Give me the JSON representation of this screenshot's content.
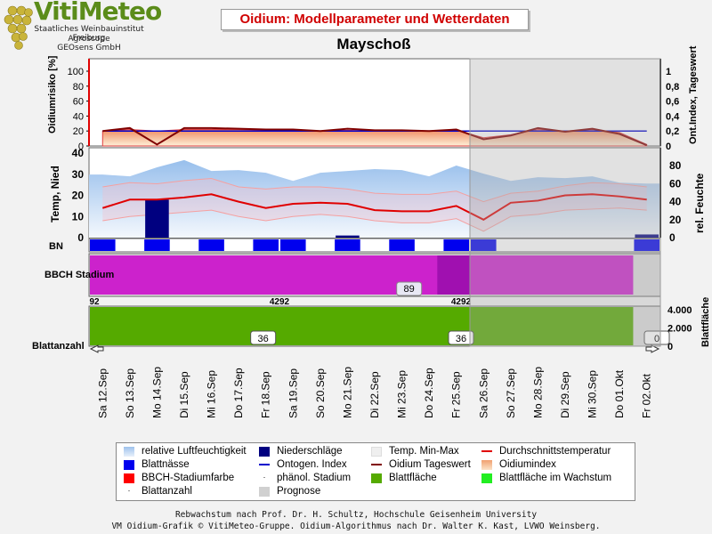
{
  "logo": {
    "name": "VitiMeteo",
    "lines": [
      "Staatliches Weinbauinstitut Freiburg",
      "Agroscope",
      "GEOsens GmbH"
    ]
  },
  "header": {
    "title": "Oidium: Modellparameter und Wetterdaten"
  },
  "station": "Mayschoß",
  "footer": {
    "line1": "Rebwachstum nach Prof. Dr. H. Schultz, Hochschule Geisenheim University",
    "line2": "VM Oidium-Grafik © VitiMeteo-Gruppe. Oidium-Algorithmus nach Dr. Walter K. Kast, LVWO Weinsberg."
  },
  "colors": {
    "forecast": "#c8c8c8",
    "temp_avg": "#e00000",
    "temp_minmax": "#f5a0a0",
    "humidity": "#a8c8ee",
    "rain": "#000080",
    "leaf_wet": "#0000ee",
    "ontogen": "#0000cc",
    "oidium_day": "#800000",
    "bbch": "#cc22cc",
    "leaf_area": "#55aa00",
    "leaf_area_growing": "#22ee22"
  },
  "chart_data": {
    "type": "line",
    "dates": [
      "Sa 12.Sep",
      "So 13.Sep",
      "Mo 14.Sep",
      "Di 15.Sep",
      "Mi 16.Sep",
      "Do 17.Sep",
      "Fr 18.Sep",
      "Sa 19.Sep",
      "So 20.Sep",
      "Mo 21.Sep",
      "Di 22.Sep",
      "Mi 23.Sep",
      "Do 24.Sep",
      "Fr 25.Sep",
      "Sa 26.Sep",
      "So 27.Sep",
      "Mo 28.Sep",
      "Di 29.Sep",
      "Mi 30.Sep",
      "Do 01.Okt",
      "Fr 02.Okt"
    ],
    "forecast_from": "Sa 26.Sep",
    "panel_oidium": {
      "ylabel_left": "Oidiumrisiko [%]",
      "ylabel_right": "Ont.Index, Tageswert",
      "left_ticks": [
        "0",
        "20",
        "40",
        "60",
        "80",
        "100"
      ],
      "right_ticks": [
        "0",
        "0,2",
        "0,4",
        "0,6",
        "0,8",
        "1"
      ],
      "oidium_index": [
        20,
        22,
        20,
        22,
        22,
        22,
        21,
        21,
        20,
        21,
        20,
        20,
        20,
        21,
        11,
        15,
        22,
        20,
        22,
        18,
        2
      ],
      "oidium_day": [
        20,
        24,
        2,
        24,
        24,
        23,
        22,
        22,
        20,
        23,
        21,
        21,
        20,
        22,
        9,
        14,
        24,
        19,
        23,
        16,
        1
      ],
      "ontogen_index": [
        20,
        20,
        20,
        20,
        20,
        20,
        20,
        20,
        20,
        20,
        20,
        20,
        20,
        20,
        20,
        20,
        20,
        20,
        20,
        20,
        20
      ]
    },
    "panel_weather": {
      "ylabel_left": "Temp, Nied",
      "ylabel_right": "rel. Feuchte",
      "left_ticks": [
        "0",
        "10",
        "20",
        "30",
        "40"
      ],
      "right_ticks": [
        "0",
        "20",
        "40",
        "60",
        "80"
      ],
      "humidity": [
        70,
        68,
        78,
        86,
        74,
        75,
        72,
        63,
        72,
        74,
        76,
        75,
        68,
        80,
        71,
        63,
        67,
        66,
        68,
        61,
        60
      ],
      "temp_avg": [
        14,
        18,
        18,
        19,
        20.5,
        17,
        14,
        16,
        16.5,
        16,
        13,
        12.5,
        12.5,
        15,
        8.5,
        16.5,
        17.5,
        20,
        20.5,
        19.5,
        18
      ],
      "temp_max": [
        24,
        26,
        25.5,
        27,
        28,
        24,
        23,
        24,
        24,
        23,
        21,
        20.5,
        20.5,
        22,
        17,
        21,
        22,
        24.5,
        26,
        25.5,
        24
      ],
      "temp_min": [
        8,
        10,
        11,
        12,
        13,
        10,
        8,
        10,
        11,
        10,
        8,
        7,
        7,
        9,
        3,
        10,
        11,
        13,
        13.5,
        14,
        13
      ],
      "rain": [
        0,
        0,
        18,
        0,
        0,
        0,
        0,
        0,
        0,
        1,
        0,
        0,
        0,
        0,
        0,
        0,
        0,
        0,
        0,
        0,
        1.5
      ]
    },
    "panel_bn": {
      "label": "BN",
      "leaf_wet": [
        1,
        0,
        1,
        0,
        1,
        0,
        1,
        1,
        0,
        1,
        0,
        1,
        0,
        1,
        1,
        0,
        0,
        0,
        0,
        0,
        1
      ]
    },
    "panel_bbch": {
      "label": "BBCH Stadium",
      "value_label": "89",
      "edge_labels": [
        "92",
        "4292",
        "4292"
      ]
    },
    "panel_leaf": {
      "label": "Blattanzahl",
      "ylabel_right": "Blattfläche",
      "right_ticks": [
        "0",
        "2.000",
        "4.000"
      ],
      "leaf_count_labels": [
        "36",
        "36",
        "0"
      ],
      "leaf_area": [
        4292,
        4292,
        4292,
        4292,
        4292,
        4292,
        4292,
        4292,
        4292,
        4292,
        4292,
        4292,
        4292,
        4292,
        4292,
        4292,
        4292,
        4292,
        4292,
        4292,
        4292
      ]
    },
    "legend": [
      "relative Luftfeuchtigkeit",
      "Niederschläge",
      "Temp. Min-Max",
      "Durchschnittstemperatur",
      "Blattnässe",
      "Ontogen. Index",
      "Oidium Tageswert",
      "Oidiumindex",
      "BBCH-Stadiumfarbe",
      "phänol. Stadium",
      "Blattfläche",
      "Blattfläche im Wachstum",
      "Blattanzahl",
      "Prognose"
    ]
  }
}
